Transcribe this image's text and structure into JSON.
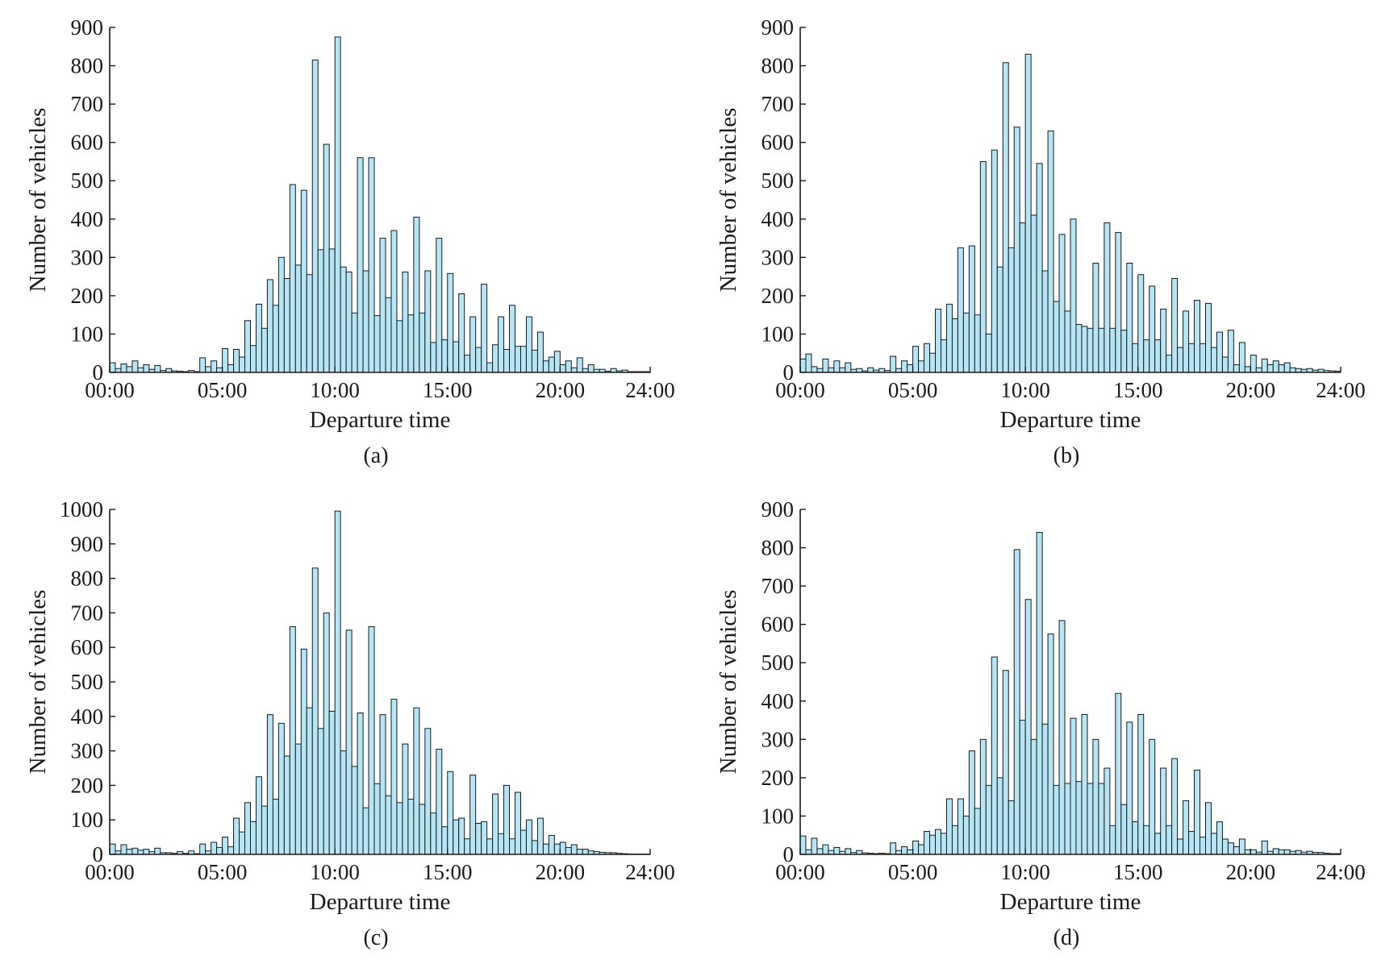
{
  "figure": {
    "bar_fill": "#b6e6f6",
    "bar_stroke": "#1a1a1a",
    "axis_color": "#1a1a1a"
  },
  "chart_data": [
    {
      "type": "bar",
      "panel_label": "(a)",
      "xlabel": "Departure time",
      "ylabel": "Number of vehicles",
      "xlim": [
        0,
        24
      ],
      "ylim": [
        0,
        900
      ],
      "xticks": [
        "00:00",
        "05:00",
        "10:00",
        "15:00",
        "20:00",
        "24:00"
      ],
      "yticks": [
        0,
        100,
        200,
        300,
        400,
        500,
        600,
        700,
        800,
        900
      ],
      "bin_width_hours": 0.25,
      "values": [
        25,
        10,
        22,
        15,
        30,
        12,
        20,
        8,
        18,
        5,
        10,
        4,
        3,
        2,
        5,
        2,
        38,
        15,
        30,
        12,
        62,
        20,
        60,
        40,
        135,
        70,
        178,
        115,
        242,
        175,
        300,
        245,
        490,
        280,
        475,
        255,
        815,
        320,
        595,
        322,
        875,
        275,
        262,
        155,
        560,
        265,
        560,
        148,
        350,
        195,
        370,
        135,
        262,
        150,
        405,
        155,
        265,
        78,
        350,
        85,
        258,
        80,
        205,
        45,
        145,
        65,
        230,
        25,
        72,
        145,
        60,
        175,
        68,
        68,
        145,
        58,
        105,
        30,
        40,
        55,
        20,
        30,
        12,
        38,
        10,
        20,
        8,
        8,
        3,
        10,
        4,
        6,
        2,
        2,
        2,
        2
      ]
    },
    {
      "type": "bar",
      "panel_label": "(b)",
      "xlabel": "Departure time",
      "ylabel": "Number of vehicles",
      "xlim": [
        0,
        24
      ],
      "ylim": [
        0,
        900
      ],
      "xticks": [
        "00:00",
        "05:00",
        "10:00",
        "15:00",
        "20:00",
        "24:00"
      ],
      "yticks": [
        0,
        100,
        200,
        300,
        400,
        500,
        600,
        700,
        800,
        900
      ],
      "bin_width_hours": 0.25,
      "values": [
        35,
        48,
        15,
        10,
        35,
        12,
        30,
        12,
        25,
        8,
        10,
        4,
        12,
        6,
        10,
        5,
        42,
        10,
        30,
        20,
        68,
        30,
        75,
        50,
        165,
        85,
        178,
        140,
        325,
        155,
        330,
        150,
        550,
        100,
        580,
        275,
        808,
        325,
        640,
        390,
        830,
        410,
        545,
        265,
        630,
        185,
        360,
        160,
        400,
        125,
        120,
        115,
        285,
        115,
        390,
        115,
        365,
        110,
        285,
        75,
        255,
        85,
        225,
        85,
        165,
        45,
        245,
        65,
        160,
        75,
        188,
        75,
        180,
        65,
        105,
        40,
        110,
        20,
        78,
        15,
        45,
        12,
        35,
        20,
        30,
        20,
        25,
        12,
        10,
        8,
        10,
        6,
        8,
        5,
        4,
        3
      ]
    },
    {
      "type": "bar",
      "panel_label": "(c)",
      "xlabel": "Departure time",
      "ylabel": "Number of vehicles",
      "xlim": [
        0,
        24
      ],
      "ylim": [
        0,
        1000
      ],
      "xticks": [
        "00:00",
        "05:00",
        "10:00",
        "15:00",
        "20:00",
        "24:00"
      ],
      "yticks": [
        0,
        100,
        200,
        300,
        400,
        500,
        600,
        700,
        800,
        900,
        1000
      ],
      "bin_width_hours": 0.25,
      "values": [
        30,
        10,
        28,
        15,
        18,
        12,
        15,
        8,
        18,
        5,
        5,
        3,
        8,
        3,
        10,
        2,
        30,
        10,
        35,
        20,
        50,
        22,
        105,
        65,
        150,
        95,
        225,
        140,
        405,
        160,
        380,
        285,
        660,
        320,
        595,
        425,
        830,
        365,
        700,
        415,
        995,
        300,
        650,
        255,
        410,
        135,
        660,
        205,
        405,
        170,
        450,
        150,
        320,
        160,
        425,
        145,
        365,
        120,
        305,
        80,
        240,
        100,
        105,
        45,
        230,
        90,
        95,
        45,
        175,
        60,
        200,
        45,
        180,
        70,
        100,
        40,
        105,
        30,
        55,
        30,
        35,
        20,
        28,
        15,
        15,
        10,
        8,
        6,
        5,
        5,
        3,
        2,
        1,
        1,
        1,
        1
      ]
    },
    {
      "type": "bar",
      "panel_label": "(d)",
      "xlabel": "Departure time",
      "ylabel": "Number of vehicles",
      "xlim": [
        0,
        24
      ],
      "ylim": [
        0,
        900
      ],
      "xticks": [
        "00:00",
        "05:00",
        "10:00",
        "15:00",
        "20:00",
        "24:00"
      ],
      "yticks": [
        0,
        100,
        200,
        300,
        400,
        500,
        600,
        700,
        800,
        900
      ],
      "bin_width_hours": 0.25,
      "values": [
        48,
        12,
        42,
        15,
        25,
        10,
        18,
        8,
        15,
        5,
        10,
        4,
        3,
        2,
        3,
        2,
        30,
        10,
        20,
        12,
        35,
        25,
        60,
        50,
        65,
        55,
        145,
        75,
        145,
        100,
        270,
        120,
        300,
        180,
        515,
        200,
        480,
        140,
        795,
        350,
        665,
        300,
        840,
        340,
        575,
        180,
        610,
        185,
        355,
        190,
        365,
        185,
        300,
        185,
        225,
        75,
        420,
        130,
        345,
        85,
        365,
        75,
        300,
        55,
        225,
        75,
        250,
        40,
        140,
        60,
        220,
        45,
        135,
        55,
        85,
        40,
        30,
        20,
        40,
        12,
        12,
        6,
        35,
        8,
        15,
        12,
        12,
        8,
        10,
        6,
        8,
        5,
        5,
        3,
        2,
        2
      ]
    }
  ]
}
